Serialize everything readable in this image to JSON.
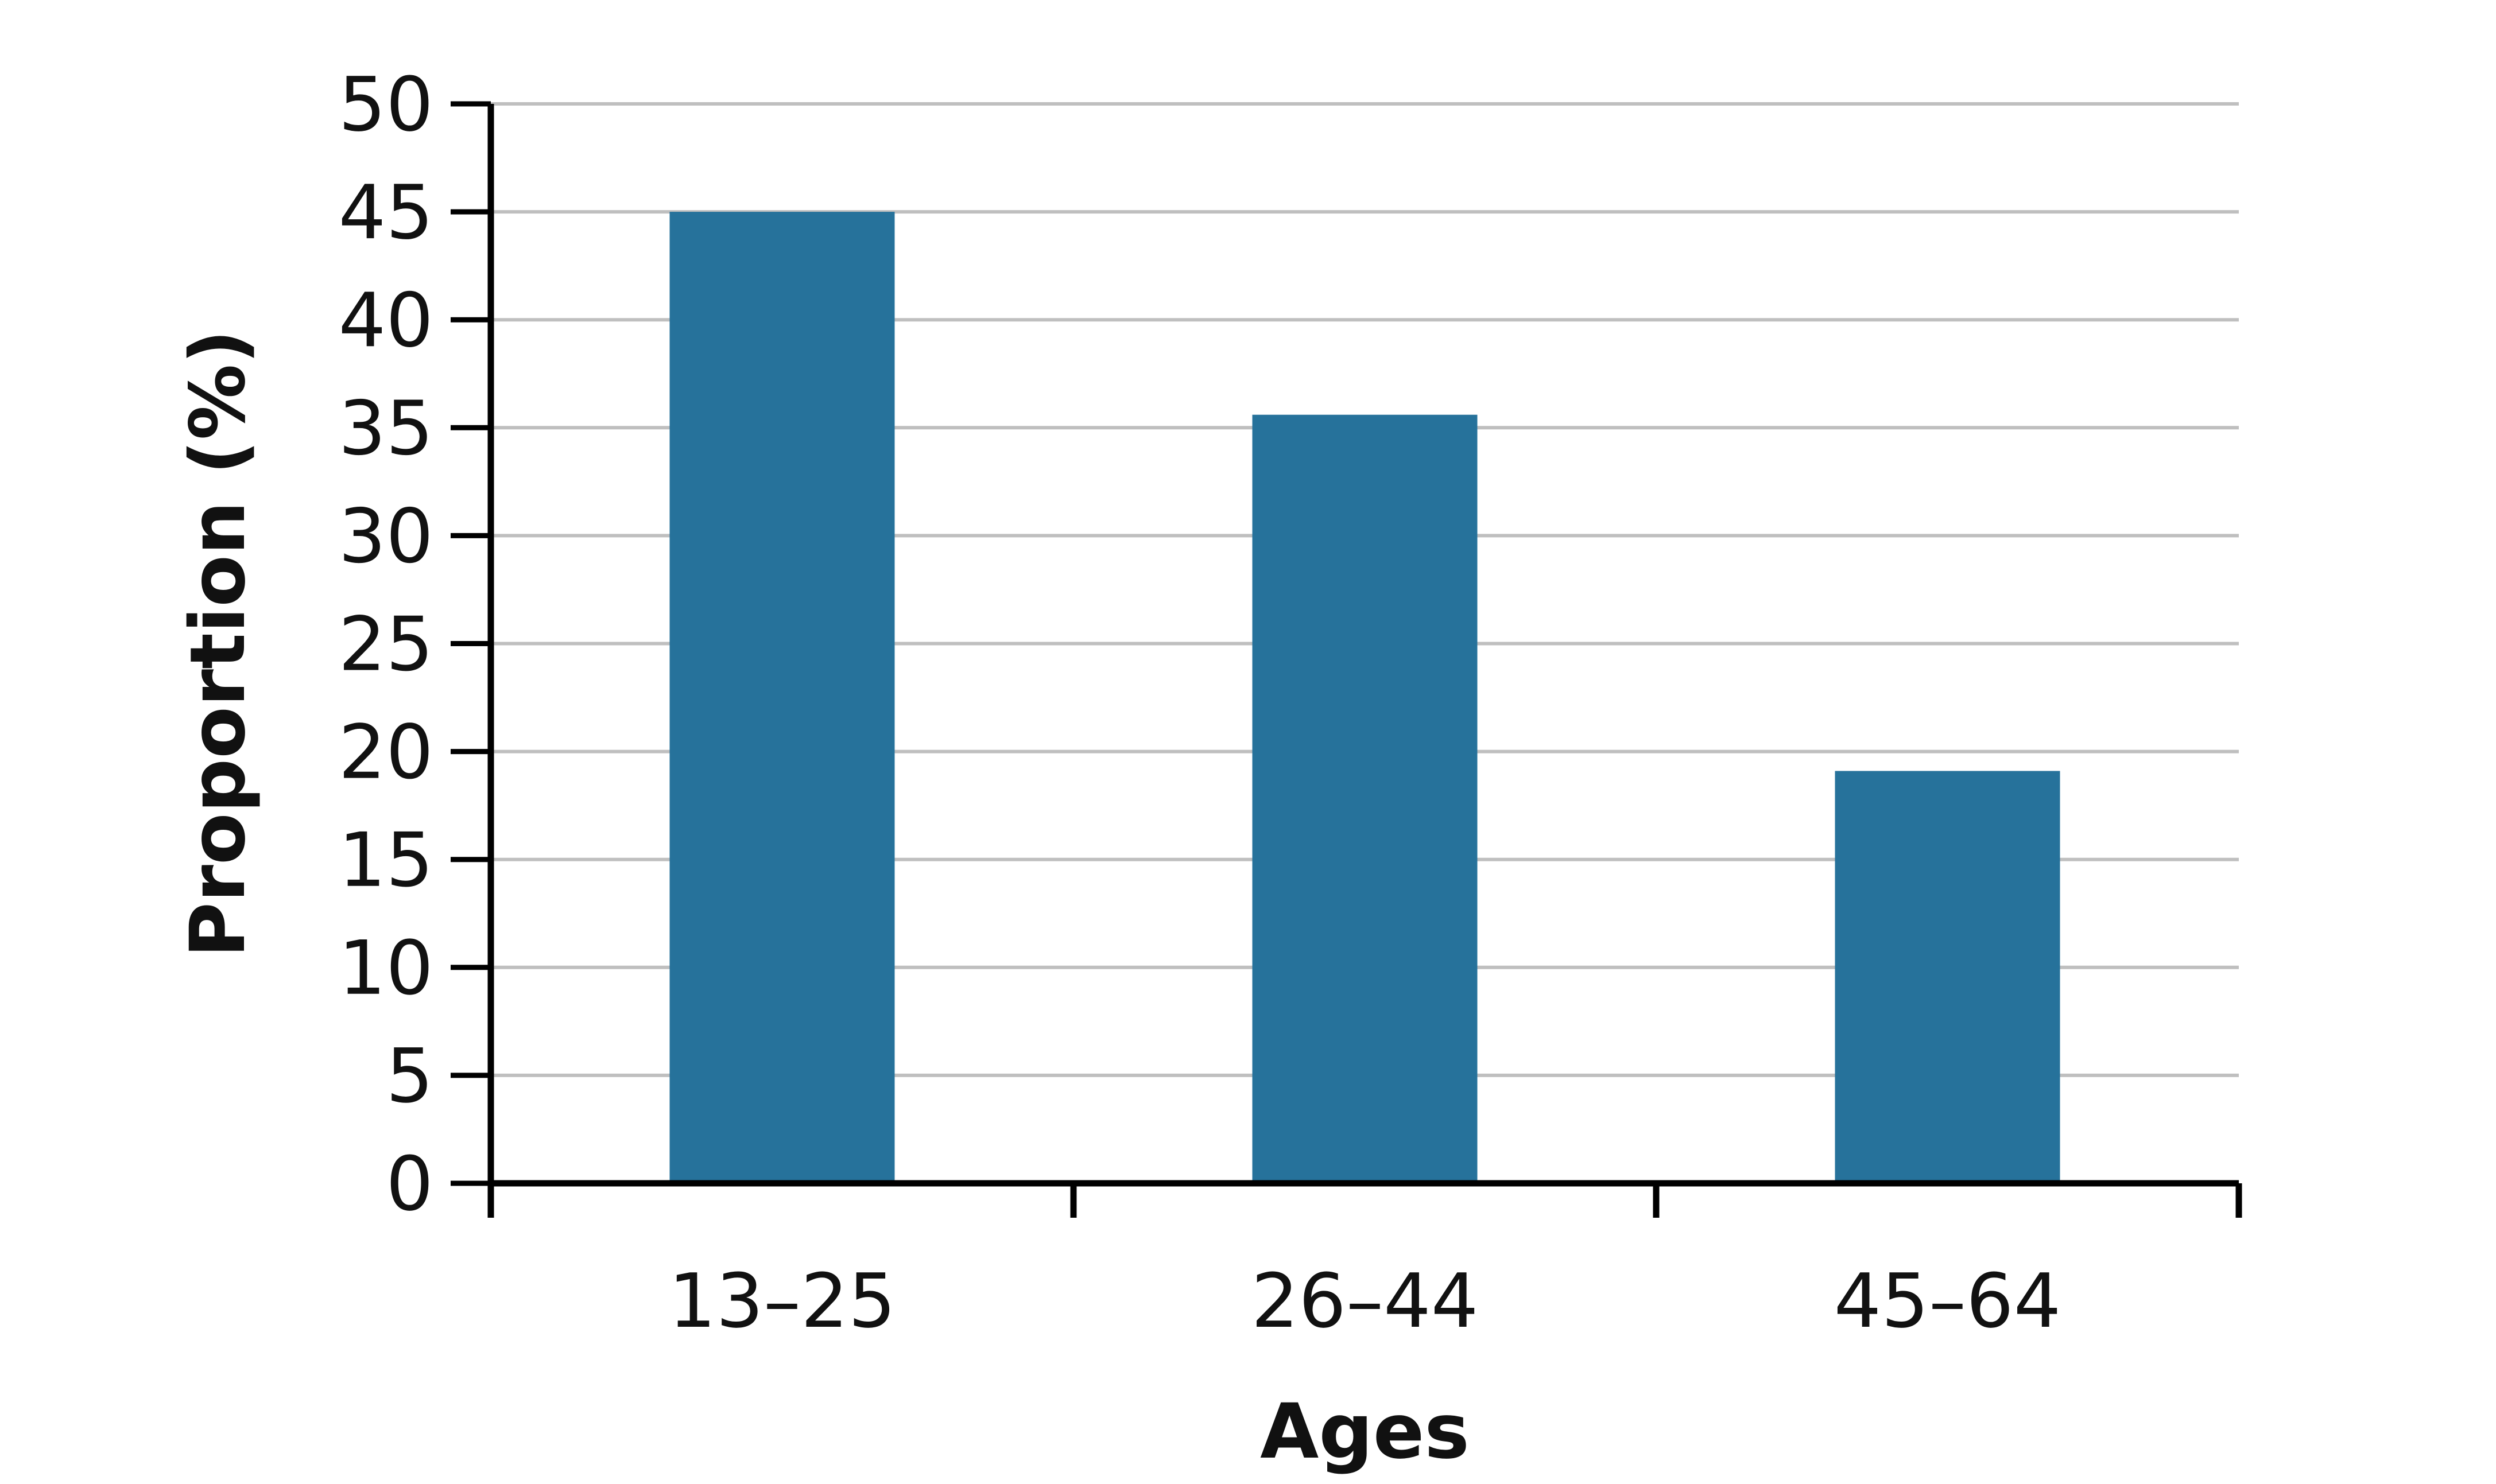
{
  "chart_data": {
    "type": "bar",
    "title": "",
    "xlabel": "Ages",
    "ylabel": "Proportion (%)",
    "categories": [
      "13–25",
      "26–44",
      "45–64"
    ],
    "values": [
      45,
      35.6,
      19.1
    ],
    "ylim": [
      0,
      50
    ],
    "yticks": [
      0,
      5,
      10,
      15,
      20,
      25,
      30,
      35,
      40,
      45,
      50
    ],
    "grid": true,
    "legend": "none",
    "colors": {
      "bar": "#26729b",
      "grid": "#bfbfbf",
      "axis": "#000000",
      "text": "#111111"
    }
  }
}
